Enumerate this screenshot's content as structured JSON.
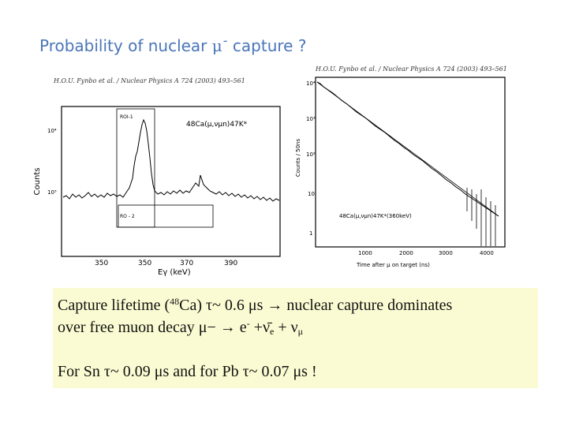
{
  "slide": {
    "title_prefix": "Probability of nuclear ",
    "title_symbol": "μ",
    "title_sup": "-",
    "title_suffix": " capture ?"
  },
  "left_panel": {
    "citation": "H.O.U. Fynbo et al. / Nuclear Physics A 724 (2003) 493–561",
    "reaction": "48Ca(μ,νμn)47K*",
    "roi1": "ROI-1",
    "roi2": "RO - 2",
    "ylabel": "Counts",
    "xlabel": "Eγ (keV)",
    "ytick_1e4": "10⁴",
    "ytick_1e3": "10³",
    "xticks": [
      "350",
      "350",
      "370",
      "390"
    ]
  },
  "right_panel": {
    "citation": "H.O.U. Fynbo et al. / Nuclear Physics A 724 (2003) 493–561",
    "ylabel": "Counts / 50ns",
    "xlabel": "Time after μ on target (ns)",
    "reaction": "48Ca(μ,νμn)47K*(360keV)",
    "yticks": [
      "10⁴",
      "10³",
      "10²",
      "10",
      "1"
    ],
    "xticks": [
      "1000",
      "2000",
      "3000",
      "4000"
    ]
  },
  "info": {
    "line1_a": "Capture lifetime (",
    "line1_sup": "48",
    "line1_b": "Ca) τ~ 0.6 μs → nuclear capture dominates",
    "line2_a": " over free muon decay μ− → e",
    "line2_sup": "-",
    "line2_b": " +ν̄",
    "line2_sub1": "e",
    "line2_c": " + ν",
    "line2_sub2": "μ",
    "line3": "For Sn τ~ 0.09 μs and for Pb τ~ 0.07 μs !"
  }
}
